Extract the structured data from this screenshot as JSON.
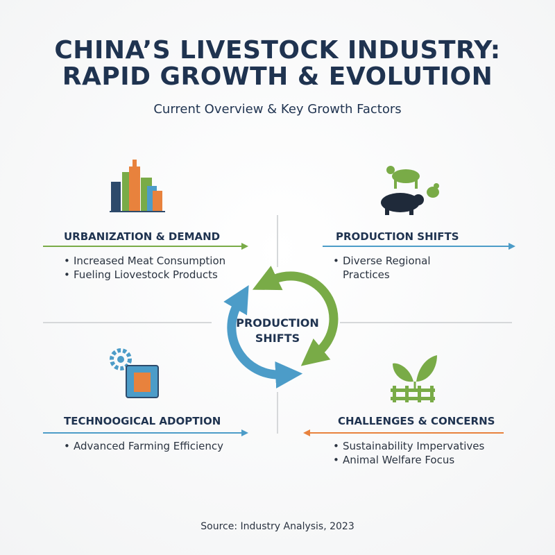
{
  "header": {
    "title_lines": [
      "CHINA’S LIVESTOCK INDUSTRY:",
      "RAPID GROWTH & EVOLUTION"
    ],
    "subtitle": "Current Overview & Key Growth Factors"
  },
  "quadrants": [
    {
      "heading": "URBANIZATION & DEMAND",
      "bullets": [
        "Increased Meat Consumption",
        "Fueling Liovestock Products"
      ]
    },
    {
      "heading": "PRODUCTION SHIFTS",
      "bullets": [
        "Diverse Regional Practices"
      ]
    },
    {
      "heading": "TECHNOOGICAL ADOPTION",
      "bullets": [
        "Advanced Farming Efficiency"
      ]
    },
    {
      "heading": "CHALLENGES & CONCERNS",
      "bullets": [
        "Sustainability Impervatives",
        "Animal Welfare Focus"
      ]
    }
  ],
  "center": {
    "lines": [
      "PRODUCTION",
      "SHIFTS"
    ]
  },
  "footer": {
    "source": "Source: Industry Analysis, 2023"
  }
}
